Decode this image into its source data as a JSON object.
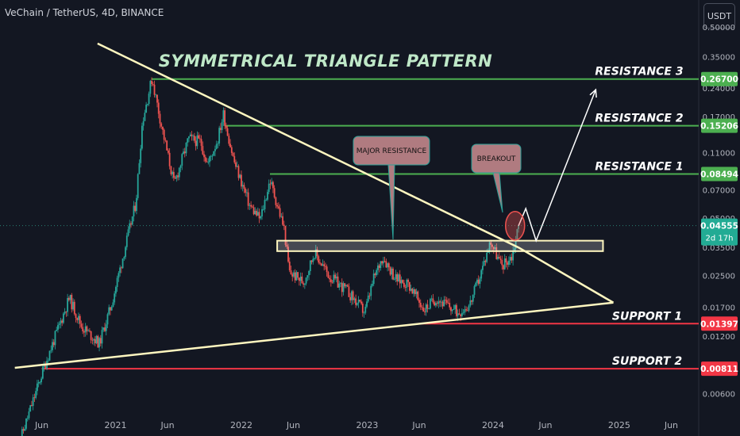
{
  "header": {
    "symbol": "VeChain / TetherUS, 4D, BINANCE",
    "currency_button": "USDT"
  },
  "chart_data": {
    "type": "candlestick",
    "title": "SYMMETRICAL TRIANGLE PATTERN",
    "y_scale": "log",
    "ylim": [
      0.0048,
      0.52
    ],
    "y_ticks": [
      0.5,
      0.35,
      0.24,
      0.17,
      0.11,
      0.07,
      0.05,
      0.035,
      0.025,
      0.017,
      0.012,
      0.006
    ],
    "y_tick_labels": [
      "0.50000",
      "0.35000",
      "0.24000",
      "0.17000",
      "0.11000",
      "0.07000",
      "0.05000",
      "0.03500",
      "0.02500",
      "0.01700",
      "0.01200",
      "0.00600"
    ],
    "x_tick_labels": [
      "Jun",
      "2021",
      "Jun",
      "2022",
      "Jun",
      "2023",
      "Jun",
      "2024",
      "Jun",
      "2025",
      "Jun"
    ],
    "x_ticks": [
      "2020-06-01",
      "2021-01-01",
      "2021-06-01",
      "2022-01-01",
      "2022-06-01",
      "2023-01-01",
      "2023-06-01",
      "2024-01-01",
      "2024-06-01",
      "2025-01-01",
      "2025-06-01"
    ],
    "levels": [
      {
        "label": "RESISTANCE 3",
        "value": 0.267,
        "value_label": "0.26700",
        "color": "#4caf50"
      },
      {
        "label": "RESISTANCE 2",
        "value": 0.15206,
        "value_label": "0.15206",
        "color": "#4caf50"
      },
      {
        "label": "RESISTANCE 1",
        "value": 0.08494,
        "value_label": "0.08494",
        "color": "#4caf50"
      },
      {
        "label": "SUPPORT  1",
        "value": 0.01397,
        "value_label": "0.01397",
        "color": "#f23645"
      },
      {
        "label": "SUPPORT  2",
        "value": 0.00811,
        "value_label": "0.00811",
        "color": "#f23645"
      }
    ],
    "current_price": {
      "value": 0.04555,
      "label": "0.04555",
      "countdown": "2d 17h",
      "color": "#22ab94"
    },
    "callouts": [
      "MAJOR RESISTANCE",
      "BREAKOUT"
    ],
    "price_path": [
      [
        "2020-03-20",
        0.003
      ],
      [
        "2020-06-10",
        0.0085
      ],
      [
        "2020-08-20",
        0.019
      ],
      [
        "2020-09-25",
        0.0135
      ],
      [
        "2020-11-15",
        0.011
      ],
      [
        "2020-12-20",
        0.0175
      ],
      [
        "2021-01-20",
        0.03
      ],
      [
        "2021-03-01",
        0.06
      ],
      [
        "2021-03-20",
        0.16
      ],
      [
        "2021-04-17",
        0.27
      ],
      [
        "2021-05-15",
        0.15
      ],
      [
        "2021-06-20",
        0.075
      ],
      [
        "2021-08-01",
        0.13
      ],
      [
        "2021-09-05",
        0.125
      ],
      [
        "2021-09-25",
        0.095
      ],
      [
        "2021-10-25",
        0.13
      ],
      [
        "2021-11-10",
        0.175
      ],
      [
        "2021-12-10",
        0.1
      ],
      [
        "2022-01-25",
        0.058
      ],
      [
        "2022-02-25",
        0.049
      ],
      [
        "2022-03-25",
        0.079
      ],
      [
        "2022-05-05",
        0.044
      ],
      [
        "2022-05-20",
        0.026
      ],
      [
        "2022-07-01",
        0.023
      ],
      [
        "2022-08-01",
        0.033
      ],
      [
        "2022-09-15",
        0.0245
      ],
      [
        "2022-11-01",
        0.021
      ],
      [
        "2022-12-25",
        0.016
      ],
      [
        "2023-01-20",
        0.024
      ],
      [
        "2023-02-15",
        0.0315
      ],
      [
        "2023-03-25",
        0.024
      ],
      [
        "2023-05-01",
        0.0225
      ],
      [
        "2023-06-15",
        0.0165
      ],
      [
        "2023-07-20",
        0.019
      ],
      [
        "2023-09-20",
        0.016
      ],
      [
        "2023-10-25",
        0.0175
      ],
      [
        "2023-11-25",
        0.025
      ],
      [
        "2023-12-25",
        0.038
      ],
      [
        "2024-01-25",
        0.028
      ],
      [
        "2024-02-25",
        0.0315
      ],
      [
        "2024-03-15",
        0.0455
      ]
    ],
    "projection": [
      [
        "2024-03-15",
        0.0455
      ],
      [
        "2024-04-05",
        0.056
      ],
      [
        "2024-05-05",
        0.038
      ],
      [
        "2024-10-25",
        0.235
      ]
    ],
    "triangle_upper": [
      [
        "2020-11-10",
        0.41
      ],
      [
        "2024-03-15",
        0.035
      ],
      [
        "2024-12-15",
        0.018
      ]
    ],
    "triangle_lower": [
      [
        "2020-03-15",
        0.0082
      ],
      [
        "2024-12-15",
        0.018
      ]
    ],
    "resistance_zone": [
      [
        "2022-04-15",
        0.038
      ],
      [
        "2024-11-15",
        0.0335
      ]
    ],
    "colors": {
      "up": "#26a69a",
      "down": "#ef5350",
      "trendline": "#fff7c0",
      "title": "#bfe8c8",
      "callout_bg": "#b07b80",
      "callout_border": "#2aa198"
    }
  }
}
